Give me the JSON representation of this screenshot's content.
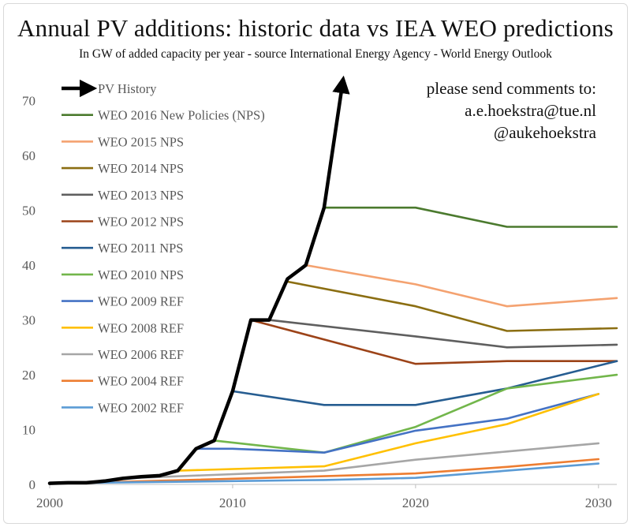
{
  "header": {
    "title": "Annual PV additions: historic data vs IEA WEO predictions",
    "subtitle": "In GW of added capacity per year - source International Energy Agency - World Energy Outlook"
  },
  "comments": {
    "line1": "please send comments to:",
    "line2": "a.e.hoekstra@tue.nl",
    "line3": "@aukehoekstra"
  },
  "chart_data": {
    "type": "line",
    "title": "Annual PV additions: historic data vs IEA WEO predictions",
    "subtitle": "In GW of added capacity per year - source International Energy Agency - World Energy Outlook",
    "xlabel": "",
    "ylabel": "",
    "xlim": [
      2000,
      2031
    ],
    "ylim": [
      0,
      75
    ],
    "x_ticks": [
      2000,
      2010,
      2020,
      2030
    ],
    "y_ticks": [
      0,
      10,
      20,
      30,
      40,
      50,
      60,
      70
    ],
    "grid": false,
    "legend_position": "top-left",
    "series": [
      {
        "name": "PV History",
        "color": "#000000",
        "arrow": true,
        "x": [
          2000,
          2001,
          2002,
          2003,
          2004,
          2005,
          2006,
          2007,
          2008,
          2009,
          2010,
          2011,
          2012,
          2013,
          2014,
          2015,
          2016
        ],
        "y": [
          0.2,
          0.3,
          0.3,
          0.6,
          1.1,
          1.4,
          1.6,
          2.5,
          6.5,
          8.0,
          17.0,
          30.0,
          30.0,
          37.5,
          40.0,
          50.5,
          73.0
        ]
      },
      {
        "name": "WEO 2016 New Policies (NPS)",
        "color": "#4b7a2e",
        "x": [
          2015,
          2020,
          2025,
          2031
        ],
        "y": [
          50.5,
          50.5,
          47.0,
          47.0
        ]
      },
      {
        "name": "WEO 2015 NPS",
        "color": "#f4a270",
        "x": [
          2014,
          2020,
          2025,
          2031
        ],
        "y": [
          40.0,
          36.5,
          32.5,
          34.0
        ]
      },
      {
        "name": "WEO 2014 NPS",
        "color": "#8b6e12",
        "x": [
          2013,
          2020,
          2025,
          2031
        ],
        "y": [
          37.0,
          32.5,
          28.0,
          28.5
        ]
      },
      {
        "name": "WEO 2013 NPS",
        "color": "#5f5f5f",
        "x": [
          2012,
          2020,
          2025,
          2031
        ],
        "y": [
          30.0,
          27.0,
          25.0,
          25.5
        ]
      },
      {
        "name": "WEO 2012 NPS",
        "color": "#9c4318",
        "x": [
          2011,
          2020,
          2025,
          2031
        ],
        "y": [
          30.0,
          22.0,
          22.5,
          22.5
        ]
      },
      {
        "name": "WEO 2011 NPS",
        "color": "#265d91",
        "x": [
          2010,
          2015,
          2020,
          2025,
          2031
        ],
        "y": [
          17.0,
          14.5,
          14.5,
          17.5,
          22.5
        ]
      },
      {
        "name": "WEO 2010 NPS",
        "color": "#72b64b",
        "x": [
          2009,
          2015,
          2020,
          2025,
          2031
        ],
        "y": [
          8.0,
          5.8,
          10.5,
          17.5,
          20.0
        ]
      },
      {
        "name": "WEO 2009 REF",
        "color": "#4472c4",
        "x": [
          2008,
          2010,
          2015,
          2020,
          2025,
          2030
        ],
        "y": [
          6.5,
          6.5,
          5.8,
          9.8,
          12.0,
          16.5
        ]
      },
      {
        "name": "WEO 2008 REF",
        "color": "#ffc000",
        "x": [
          2007,
          2015,
          2020,
          2025,
          2030
        ],
        "y": [
          2.5,
          3.3,
          7.5,
          11.0,
          16.5
        ]
      },
      {
        "name": "WEO 2006 REF",
        "color": "#a6a6a6",
        "x": [
          2004,
          2015,
          2020,
          2025,
          2030
        ],
        "y": [
          1.1,
          2.5,
          4.5,
          6.0,
          7.5
        ]
      },
      {
        "name": "WEO 2004 REF",
        "color": "#ed7d31",
        "x": [
          2002,
          2015,
          2020,
          2025,
          2030
        ],
        "y": [
          0.3,
          1.5,
          2.0,
          3.2,
          4.6
        ]
      },
      {
        "name": "WEO 2002 REF",
        "color": "#5b9bd5",
        "x": [
          2000,
          2015,
          2020,
          2025,
          2030
        ],
        "y": [
          0.2,
          0.8,
          1.2,
          2.5,
          3.8
        ]
      }
    ]
  }
}
